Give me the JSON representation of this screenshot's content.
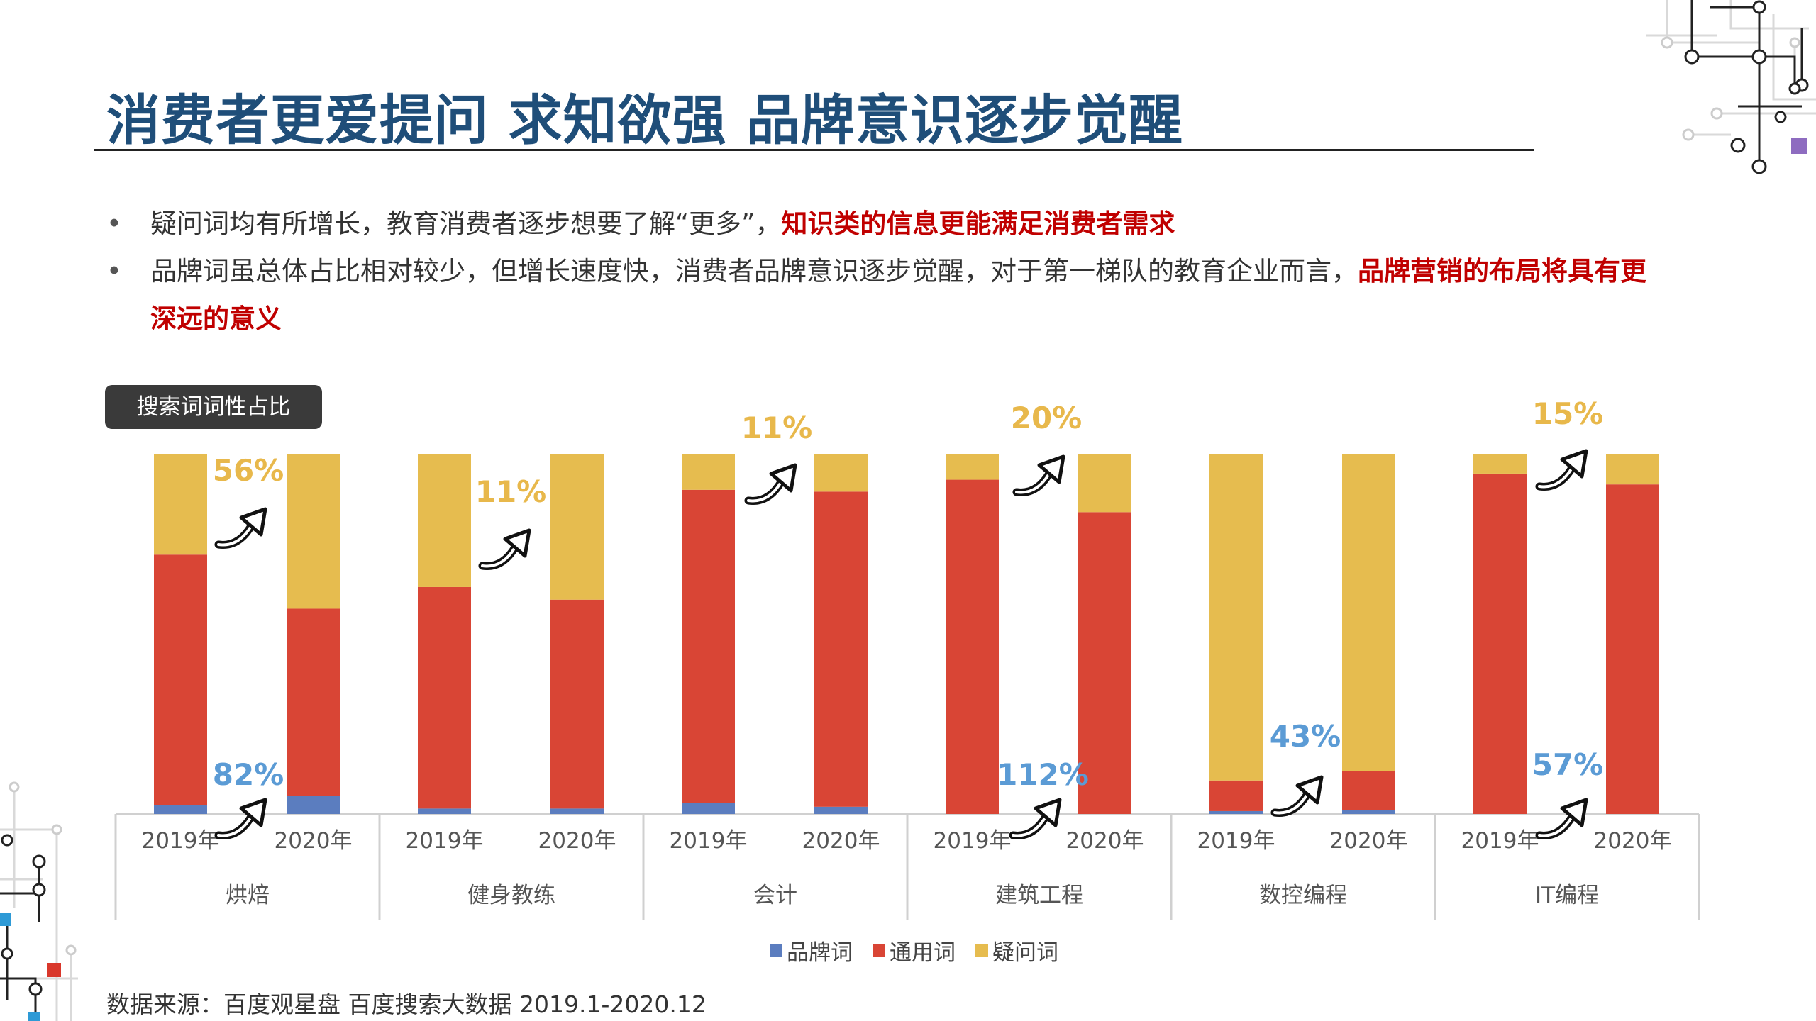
{
  "header": {
    "title": "消费者更爱提问 求知欲强 品牌意识逐步觉醒"
  },
  "bullets": [
    {
      "marker": "•",
      "text": "疑问词均有所增长，教育消费者逐步想要了解“更多”，",
      "highlight": "知识类的信息更能满足消费者需求"
    },
    {
      "marker": "•",
      "text": "品牌词虽总体占比相对较少，但增长速度快，消费者品牌意识逐步觉醒，对于第一梯队的教育企业而言，",
      "highlight": "品牌营销的布局将具有更深远的意义"
    }
  ],
  "chart_badge": "搜索词词性占比",
  "source": "数据来源：百度观星盘 百度搜索大数据 2019.1-2020.12",
  "colors": {
    "brand": "#5b7dbf",
    "general": "#d94535",
    "question": "#e6bc4f",
    "question_label": "#e8b84b",
    "brand_label": "#5b9bd5",
    "title": "#1f4e79",
    "highlight": "#c00000"
  },
  "chart_data": {
    "type": "bar",
    "stacked": true,
    "normalized": true,
    "ylim": [
      0,
      100
    ],
    "categories": [
      "烘焙",
      "健身教练",
      "会计",
      "建筑工程",
      "数控编程",
      "IT编程"
    ],
    "years": [
      "2019年",
      "2020年"
    ],
    "series": [
      {
        "name": "品牌词",
        "values_2019": [
          2.5,
          1.5,
          3,
          0,
          0.8,
          0
        ],
        "values_2020": [
          5,
          1.5,
          2,
          0,
          1,
          0
        ]
      },
      {
        "name": "通用词",
        "values_2019": [
          69.5,
          61.5,
          87,
          92.8,
          8.5,
          94.5
        ],
        "values_2020": [
          52,
          58,
          87.5,
          83.8,
          11,
          91.5
        ]
      },
      {
        "name": "疑问词",
        "values_2019": [
          28,
          37,
          10,
          7.2,
          90.7,
          5.5
        ],
        "values_2020": [
          43,
          40.5,
          10.5,
          16.2,
          88,
          8.5
        ]
      }
    ],
    "annotations": {
      "question_growth": [
        "56%",
        "11%",
        "11%",
        "20%",
        "",
        "15%"
      ],
      "brand_growth": [
        "82%",
        "",
        "",
        "112%",
        "43%",
        "57%"
      ]
    },
    "legend_position": "bottom"
  }
}
